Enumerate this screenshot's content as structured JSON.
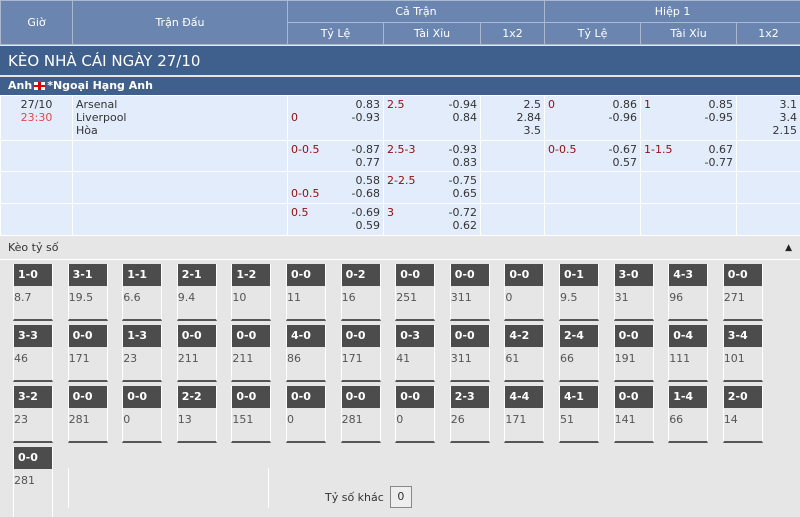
{
  "header": {
    "gio": "Giờ",
    "tran_dau": "Trận Đấu",
    "ca_tran": "Cả Trận",
    "hiep1": "Hiệp 1",
    "ty_le": "Tỷ Lệ",
    "tai_xiu": "Tài Xỉu",
    "x12": "1x2"
  },
  "title": "KÈO NHÀ CÁI NGÀY 27/10",
  "league": {
    "country": "Anh",
    "name": "*Ngoại Hạng Anh",
    "flag": "england-flag"
  },
  "match": {
    "date": "27/10",
    "time": "23:30",
    "home": "Arsenal",
    "away": "Liverpool",
    "draw": "Hòa"
  },
  "rows": [
    {
      "ft_hc": "0",
      "ft_o": [
        "0.83",
        "-0.93"
      ],
      "ft_ou": "2.5",
      "ft_ouo": [
        "-0.94",
        "0.84"
      ],
      "ft_1x2": [
        "2.5",
        "2.84",
        "3.5"
      ],
      "h1_hc": "0",
      "h1_o": [
        "0.86",
        "-0.96"
      ],
      "h1_ou": "1",
      "h1_ouo": [
        "0.85",
        "-0.95"
      ],
      "h1_1x2": [
        "3.1",
        "3.4",
        "2.15"
      ]
    },
    {
      "ft_hc": "0-0.5",
      "ft_o": [
        "-0.87",
        "0.77"
      ],
      "ft_ou": "2.5-3",
      "ft_ouo": [
        "-0.93",
        "0.83"
      ],
      "h1_hc": "0-0.5",
      "h1_o": [
        "-0.67",
        "0.57"
      ],
      "h1_ou": "1-1.5",
      "h1_ouo": [
        "0.67",
        "-0.77"
      ]
    },
    {
      "ft_hc": "0-0.5",
      "ft_o": [
        "0.58",
        "-0.68"
      ],
      "ft_ou": "2-2.5",
      "ft_ouo": [
        "-0.75",
        "0.65"
      ]
    },
    {
      "ft_hc": "0.5",
      "ft_o": [
        "-0.69",
        "0.59"
      ],
      "ft_ou": "3",
      "ft_ouo": [
        "-0.72",
        "0.62"
      ]
    }
  ],
  "correct_score": {
    "label": "Kèo tỷ số",
    "other_label": "Tỷ số khác",
    "other_value": "0",
    "tiles": [
      [
        "1-0",
        "8.7"
      ],
      [
        "3-1",
        "19.5"
      ],
      [
        "1-1",
        "6.6"
      ],
      [
        "2-1",
        "9.4"
      ],
      [
        "1-2",
        "10"
      ],
      [
        "0-0",
        "11"
      ],
      [
        "0-2",
        "16"
      ],
      [
        "0-0",
        "251"
      ],
      [
        "0-0",
        "311"
      ],
      [
        "0-0",
        "0"
      ],
      [
        "0-1",
        "9.5"
      ],
      [
        "3-0",
        "31"
      ],
      [
        "4-3",
        "96"
      ],
      [
        "0-0",
        "271"
      ],
      [
        "3-3",
        "46"
      ],
      [
        "0-0",
        "171"
      ],
      [
        "1-3",
        "23"
      ],
      [
        "0-0",
        "211"
      ],
      [
        "0-0",
        "211"
      ],
      [
        "4-0",
        "86"
      ],
      [
        "0-0",
        "171"
      ],
      [
        "0-3",
        "41"
      ],
      [
        "0-0",
        "311"
      ],
      [
        "4-2",
        "61"
      ],
      [
        "2-4",
        "66"
      ],
      [
        "0-0",
        "191"
      ],
      [
        "0-4",
        "111"
      ],
      [
        "3-4",
        "101"
      ],
      [
        "3-2",
        "23"
      ],
      [
        "0-0",
        "281"
      ],
      [
        "0-0",
        "0"
      ],
      [
        "2-2",
        "13"
      ],
      [
        "0-0",
        "151"
      ],
      [
        "0-0",
        "0"
      ],
      [
        "0-0",
        "281"
      ],
      [
        "0-0",
        "0"
      ],
      [
        "2-3",
        "26"
      ],
      [
        "4-4",
        "171"
      ],
      [
        "4-1",
        "51"
      ],
      [
        "0-0",
        "141"
      ],
      [
        "1-4",
        "66"
      ],
      [
        "2-0",
        "14"
      ],
      [
        "0-0",
        "281"
      ]
    ]
  }
}
